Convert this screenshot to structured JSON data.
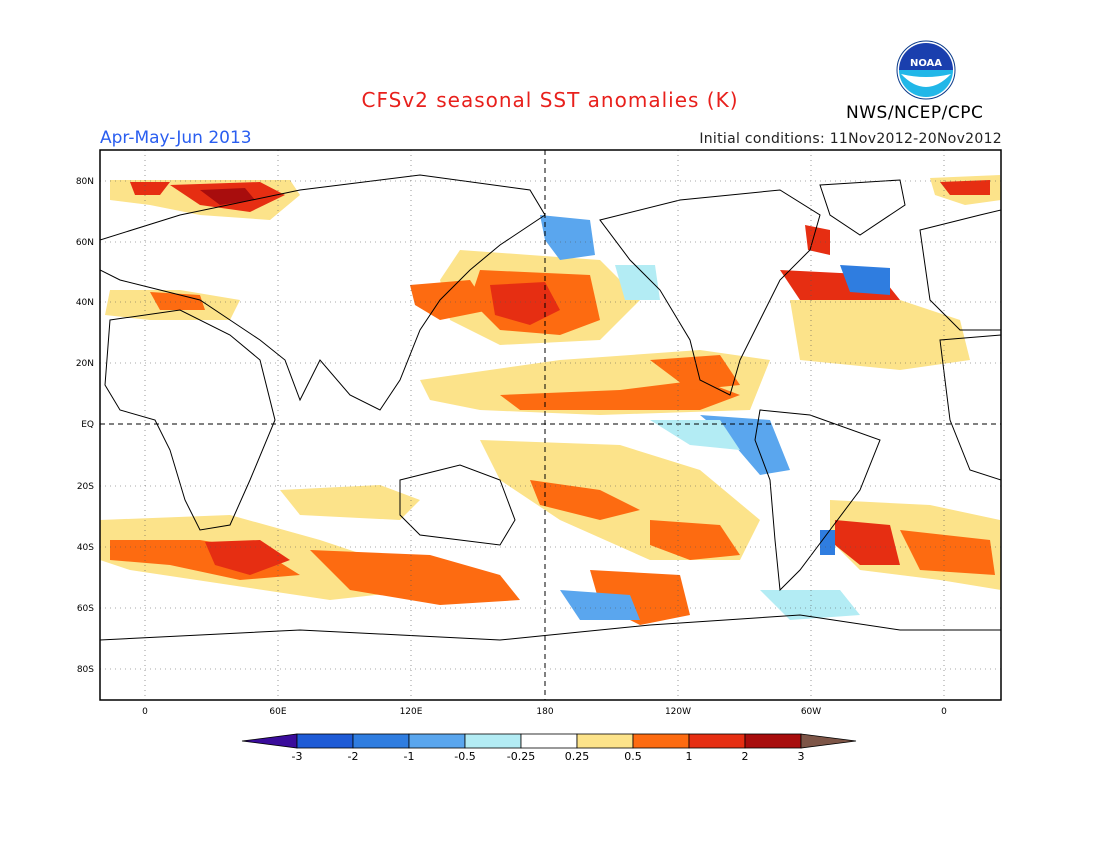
{
  "header": {
    "title": "CFSv2 seasonal SST anomalies (K)",
    "period": "Apr-May-Jun 2013",
    "initial_conditions": "Initial conditions: 11Nov2012-20Nov2012",
    "agency": "NWS/NCEP/CPC",
    "logo_text": "NOAA"
  },
  "map": {
    "projection": "cylindrical equidistant",
    "lat_labels": [
      "80N",
      "60N",
      "40N",
      "20N",
      "EQ",
      "20S",
      "40S",
      "60S",
      "80S"
    ],
    "lon_labels": [
      "0",
      "60E",
      "120E",
      "180",
      "120W",
      "60W",
      "0"
    ],
    "grid": "dotted",
    "reference_lines": [
      "EQ",
      "180"
    ]
  },
  "colorbar": {
    "levels": [
      "-3",
      "-2",
      "-1",
      "-0.5",
      "-0.25",
      "0.25",
      "0.5",
      "1",
      "2",
      "3"
    ],
    "colors": [
      "#3a0c9b",
      "#1e5bd6",
      "#2f7de0",
      "#5aa6ee",
      "#b3ecf4",
      "#ffffff",
      "#fce38a",
      "#fd6b11",
      "#e62e12",
      "#a80d0d",
      "#7d5547"
    ]
  }
}
